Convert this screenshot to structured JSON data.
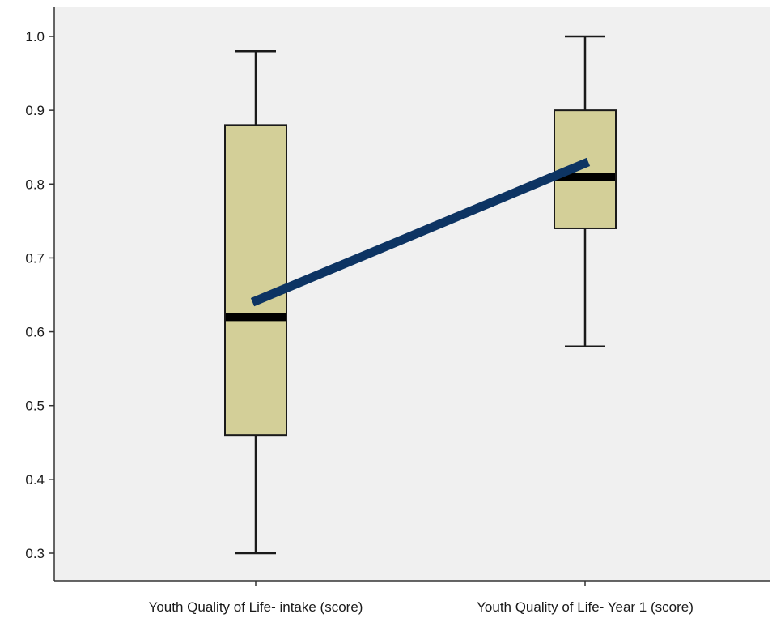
{
  "chart_data": {
    "type": "box",
    "title": "",
    "xlabel": "",
    "ylabel": "",
    "ylim": [
      0.26,
      1.04
    ],
    "yticks": [
      "0.3",
      "0.4",
      "0.5",
      "0.6",
      "0.7",
      "0.8",
      "0.9",
      "1.0"
    ],
    "categories": [
      "Youth Quality of Life- intake (score)",
      "Youth Quality of Life- Year 1 (score)"
    ],
    "boxes": [
      {
        "min": 0.3,
        "q1": 0.46,
        "median": 0.62,
        "q3": 0.88,
        "max": 0.98
      },
      {
        "min": 0.58,
        "q1": 0.74,
        "median": 0.81,
        "q3": 0.9,
        "max": 1.0
      }
    ],
    "trend_line": {
      "start": 0.64,
      "end": 0.83
    },
    "grid": false,
    "colors": {
      "plot_background": "#f0f0f0",
      "box_fill": "#d3cf98",
      "box_stroke": "#1a1a1a",
      "median": "#000000",
      "trend_line": "#0d3463"
    }
  }
}
